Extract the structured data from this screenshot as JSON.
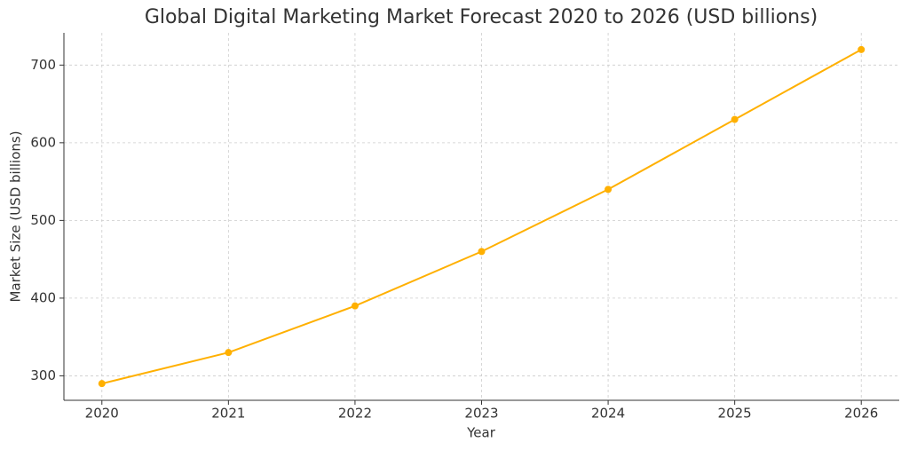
{
  "chart_data": {
    "type": "line",
    "title": "Global Digital Marketing Market Forecast 2020 to 2026 (USD billions)",
    "x_label": "Year",
    "y_label": "Market Size (USD billions)",
    "x": [
      2020,
      2021,
      2022,
      2023,
      2024,
      2025,
      2026
    ],
    "series": [
      {
        "name": "Market Size",
        "color": "#ffb000",
        "values": [
          290,
          330,
          390,
          460,
          540,
          630,
          720
        ]
      }
    ],
    "xlim": [
      2019.7,
      2026.3
    ],
    "xticks": [
      2020,
      2021,
      2022,
      2023,
      2024,
      2025,
      2026
    ],
    "ylim": [
      268.5,
      741.5
    ],
    "yticks": [
      300,
      400,
      500,
      600,
      700
    ],
    "grid": true
  }
}
